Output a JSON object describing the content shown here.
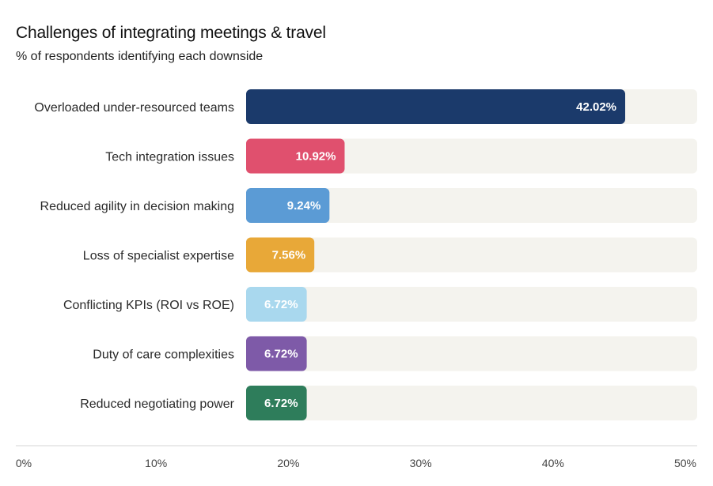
{
  "title": "Challenges of integrating meetings & travel",
  "subtitle": "% of respondents identifying each downside",
  "chart_data": {
    "type": "bar",
    "orientation": "horizontal",
    "title": "Challenges of integrating meetings & travel",
    "subtitle": "% of respondents identifying each downside",
    "categories": [
      "Overloaded under-resourced teams",
      "Tech integration issues",
      "Reduced agility in decision making",
      "Loss of specialist expertise",
      "Conflicting KPIs (ROI vs ROE)",
      "Duty of care complexities",
      "Reduced negotiating power"
    ],
    "values": [
      42.02,
      10.92,
      9.24,
      7.56,
      6.72,
      6.72,
      6.72
    ],
    "value_labels": [
      "42.02%",
      "10.92%",
      "9.24%",
      "7.56%",
      "6.72%",
      "6.72%",
      "6.72%"
    ],
    "colors": [
      "#1b3a6b",
      "#e0506e",
      "#5b9bd5",
      "#e8a838",
      "#a9d8ee",
      "#7e5aa8",
      "#2e7d5b"
    ],
    "track_color": "#f4f3ee",
    "xlim": [
      0,
      50
    ],
    "x_ticks": [
      "0%",
      "10%",
      "20%",
      "30%",
      "40%",
      "50%"
    ],
    "x_tick_values": [
      0,
      10,
      20,
      30,
      40,
      50
    ],
    "grid": false
  }
}
